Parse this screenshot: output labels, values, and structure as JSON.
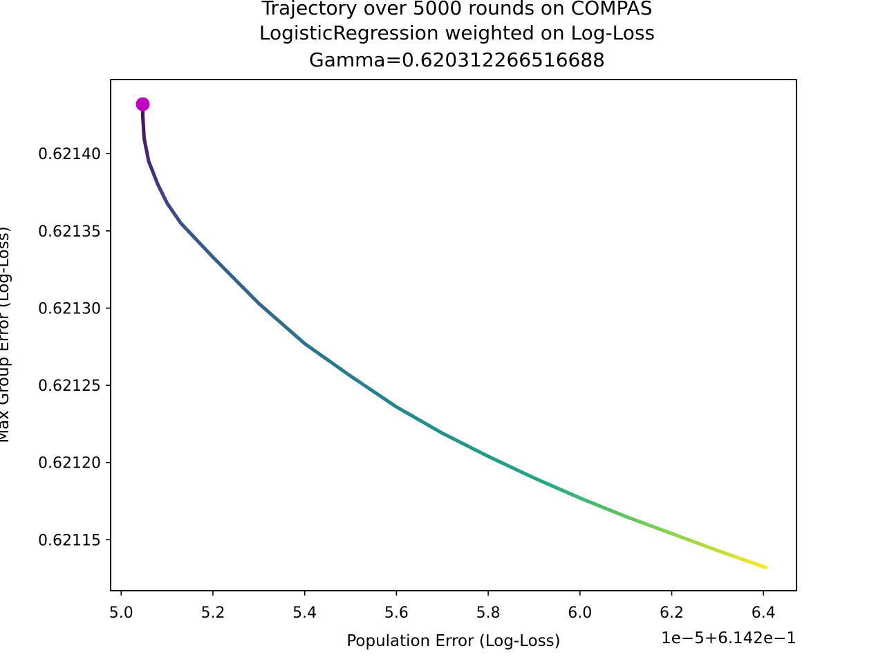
{
  "chart_data": {
    "type": "line",
    "title_lines": [
      "Trajectory over 5000 rounds on COMPAS",
      "LogisticRegression weighted on Log-Loss",
      "Gamma=0.620312266516688"
    ],
    "xlabel": "Population Error (Log-Loss)",
    "ylabel": "Max Group Error (Log-Loss)",
    "x_offset_label": "1e−5+6.142e−1",
    "x_ticks": [
      "5.0",
      "5.2",
      "5.4",
      "5.6",
      "5.8",
      "6.0",
      "6.2",
      "6.4"
    ],
    "y_ticks": [
      "0.62115",
      "0.62120",
      "0.62125",
      "0.62130",
      "0.62135",
      "0.62140"
    ],
    "xlim": [
      4.977,
      6.472
    ],
    "ylim": [
      0.621117,
      0.621448
    ],
    "x_units_note": "x values in units of 1e-5, offset 6.142e-1",
    "colormap": "viridis",
    "start_marker_color": "#c000c0",
    "series": [
      {
        "x": [
          5.047,
          5.047,
          5.05,
          5.06,
          5.08,
          5.1,
          5.13,
          5.2,
          5.3,
          5.4,
          5.5,
          5.6,
          5.7,
          5.8,
          5.9,
          6.0,
          6.1,
          6.2,
          6.3,
          6.405
        ],
        "y": [
          0.621432,
          0.621425,
          0.62141,
          0.621395,
          0.62138,
          0.621368,
          0.621355,
          0.621333,
          0.621303,
          0.621277,
          0.621256,
          0.621236,
          0.621219,
          0.621204,
          0.62119,
          0.621177,
          0.621165,
          0.621154,
          0.621143,
          0.621132
        ]
      }
    ],
    "start_point": {
      "x": 5.047,
      "y": 0.621432
    }
  }
}
